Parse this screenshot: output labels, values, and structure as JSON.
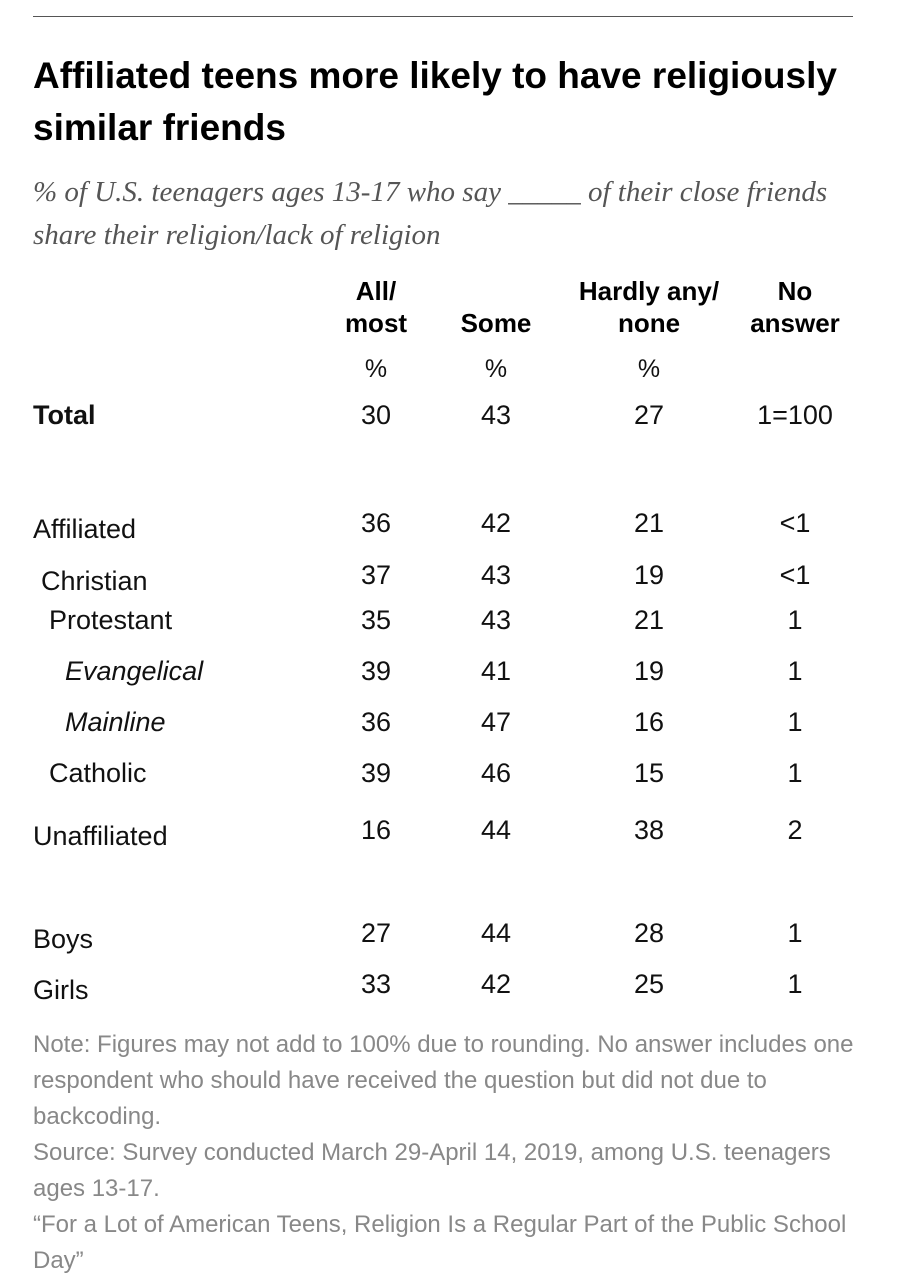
{
  "title": "Affiliated teens more likely to have religiously similar friends",
  "subtitle": "% of U.S. teenagers ages 13-17 who say _____ of their close friends share their religion/lack of religion",
  "columns": [
    {
      "line1": "All/",
      "line2": "most",
      "unit": "%"
    },
    {
      "line1": "",
      "line2": "Some",
      "unit": "%"
    },
    {
      "line1": "Hardly any/",
      "line2": "none",
      "unit": "%"
    },
    {
      "line1": "No",
      "line2": "answer",
      "unit": ""
    }
  ],
  "chart_data": {
    "type": "table",
    "title": "Affiliated teens more likely to have religiously similar friends",
    "columns": [
      "All/most",
      "Some",
      "Hardly any/none",
      "No answer"
    ],
    "rows": [
      {
        "label": "Total",
        "values": [
          "30",
          "43",
          "27",
          "1=100"
        ]
      },
      {
        "label": "Affiliated",
        "values": [
          "36",
          "42",
          "21",
          "<1"
        ]
      },
      {
        "label": "Christian",
        "values": [
          "37",
          "43",
          "19",
          "<1"
        ]
      },
      {
        "label": "Protestant",
        "values": [
          "35",
          "43",
          "21",
          "1"
        ]
      },
      {
        "label": "Evangelical",
        "values": [
          "39",
          "41",
          "19",
          "1"
        ]
      },
      {
        "label": "Mainline",
        "values": [
          "36",
          "47",
          "16",
          "1"
        ]
      },
      {
        "label": "Catholic",
        "values": [
          "39",
          "46",
          "15",
          "1"
        ]
      },
      {
        "label": "Unaffiliated",
        "values": [
          "16",
          "44",
          "38",
          "2"
        ]
      },
      {
        "label": "Boys",
        "values": [
          "27",
          "44",
          "28",
          "1"
        ]
      },
      {
        "label": "Girls",
        "values": [
          "33",
          "42",
          "25",
          "1"
        ]
      }
    ]
  },
  "notes": {
    "note": "Note: Figures may not add to 100% due to rounding. No answer includes one respondent who should have received the question but did not due to backcoding.",
    "source": "Source: Survey conducted March 29-April 14, 2019, among U.S. teenagers ages 13-17.",
    "report": "“For a Lot of American Teens, Religion Is a Regular Part of the Public School Day”"
  }
}
